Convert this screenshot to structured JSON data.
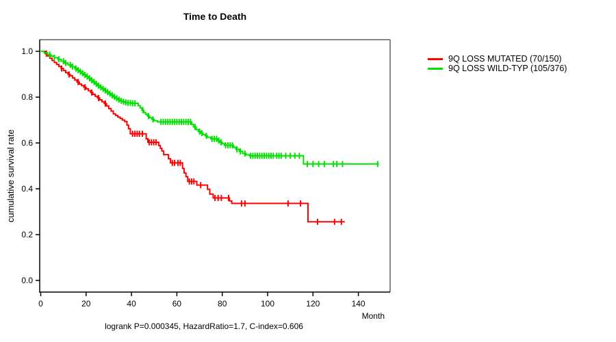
{
  "title": "Time to Death",
  "legend": {
    "items": [
      {
        "label": "9Q LOSS MUTATED (70/150)",
        "color": "#FF0000"
      },
      {
        "label": "9Q LOSS WILD-TYP (105/376)",
        "color": "#00E100"
      }
    ]
  },
  "axes": {
    "y_label": "cumulative survival rate",
    "x_label": "Month"
  },
  "footer": "logrank P=0.000345, HazardRatio=1.7, C-index=0.606",
  "colors": {
    "mutated": "#FF0000",
    "wildtype": "#00E100",
    "axis": "#000000",
    "box_shadow": "#878787"
  },
  "chart_data": {
    "type": "line",
    "subtype": "kaplan-meier-step-function",
    "title": "Time to Death",
    "xlabel": "Month",
    "ylabel": "cumulative survival rate",
    "xlim": [
      0,
      155
    ],
    "ylim": [
      0.0,
      1.0
    ],
    "x_ticks": [
      0,
      20,
      40,
      60,
      80,
      100,
      120,
      140
    ],
    "y_ticks": [
      1.0,
      0.8,
      0.6,
      0.4,
      0.2,
      0.0
    ],
    "grid": false,
    "legend_position": "right-outside",
    "annotation": "logrank P=0.000345, HazardRatio=1.7, C-index=0.606",
    "series": [
      {
        "name": "9Q LOSS MUTATED (70/150)",
        "color": "#FF0000",
        "steps": [
          [
            0,
            1.0
          ],
          [
            2,
            0.99
          ],
          [
            3,
            0.98
          ],
          [
            4,
            0.97
          ],
          [
            5,
            0.96
          ],
          [
            6,
            0.951
          ],
          [
            7,
            0.943
          ],
          [
            8,
            0.934
          ],
          [
            9,
            0.925
          ],
          [
            10,
            0.916
          ],
          [
            11,
            0.907
          ],
          [
            12,
            0.899
          ],
          [
            13,
            0.893
          ],
          [
            14,
            0.884
          ],
          [
            15,
            0.875
          ],
          [
            16,
            0.866
          ],
          [
            17,
            0.857
          ],
          [
            18,
            0.85
          ],
          [
            19,
            0.843
          ],
          [
            20,
            0.836
          ],
          [
            21,
            0.828
          ],
          [
            22,
            0.82
          ],
          [
            23,
            0.812
          ],
          [
            24,
            0.804
          ],
          [
            25,
            0.796
          ],
          [
            26,
            0.788
          ],
          [
            27,
            0.78
          ],
          [
            28,
            0.772
          ],
          [
            29,
            0.762
          ],
          [
            30,
            0.75
          ],
          [
            31,
            0.739
          ],
          [
            32,
            0.727
          ],
          [
            33,
            0.72
          ],
          [
            34,
            0.713
          ],
          [
            35,
            0.707
          ],
          [
            36,
            0.7
          ],
          [
            37,
            0.693
          ],
          [
            38,
            0.678
          ],
          [
            38.7,
            0.662
          ],
          [
            39.5,
            0.64
          ],
          [
            46.5,
            0.618
          ],
          [
            47.2,
            0.603
          ],
          [
            52,
            0.589
          ],
          [
            52.7,
            0.577
          ],
          [
            53.4,
            0.565
          ],
          [
            54.2,
            0.549
          ],
          [
            56.3,
            0.531
          ],
          [
            57.2,
            0.513
          ],
          [
            62.5,
            0.489
          ],
          [
            63.2,
            0.469
          ],
          [
            64,
            0.453
          ],
          [
            64.8,
            0.432
          ],
          [
            68.8,
            0.416
          ],
          [
            73.5,
            0.398
          ],
          [
            74.5,
            0.377
          ],
          [
            76,
            0.36
          ],
          [
            83.2,
            0.347
          ],
          [
            84.2,
            0.336
          ],
          [
            117.8,
            0.256
          ],
          [
            134,
            0.256
          ]
        ],
        "censor_months": [
          2.5,
          9.2,
          12.5,
          16.5,
          19.5,
          22.5,
          25.5,
          28.5,
          40.5,
          41.5,
          42.5,
          43.5,
          44.8,
          47.8,
          48.8,
          49.8,
          50.8,
          58,
          59,
          60.5,
          61.5,
          65.5,
          66.5,
          67.5,
          70.5,
          76.8,
          78.2,
          79.6,
          82.8,
          88.5,
          90,
          109,
          114.5,
          122,
          129.5,
          132.5
        ]
      },
      {
        "name": "9Q LOSS WILD-TYP (105/376)",
        "color": "#00E100",
        "steps": [
          [
            0,
            1.0
          ],
          [
            1.5,
            0.993
          ],
          [
            3,
            0.986
          ],
          [
            4.5,
            0.979
          ],
          [
            6,
            0.972
          ],
          [
            7.5,
            0.965
          ],
          [
            9,
            0.957
          ],
          [
            10.5,
            0.949
          ],
          [
            12,
            0.941
          ],
          [
            13.5,
            0.933
          ],
          [
            15,
            0.925
          ],
          [
            16,
            0.918
          ],
          [
            17,
            0.911
          ],
          [
            18,
            0.904
          ],
          [
            19,
            0.897
          ],
          [
            20,
            0.89
          ],
          [
            21,
            0.882
          ],
          [
            22,
            0.874
          ],
          [
            23,
            0.866
          ],
          [
            24,
            0.858
          ],
          [
            25,
            0.85
          ],
          [
            26,
            0.843
          ],
          [
            27,
            0.836
          ],
          [
            28,
            0.829
          ],
          [
            29,
            0.822
          ],
          [
            30,
            0.815
          ],
          [
            31,
            0.808
          ],
          [
            32,
            0.801
          ],
          [
            33,
            0.795
          ],
          [
            34,
            0.789
          ],
          [
            35,
            0.784
          ],
          [
            36,
            0.78
          ],
          [
            37,
            0.777
          ],
          [
            38,
            0.775
          ],
          [
            40,
            0.773
          ],
          [
            43,
            0.763
          ],
          [
            43.8,
            0.753
          ],
          [
            44.6,
            0.743
          ],
          [
            45.4,
            0.733
          ],
          [
            46.2,
            0.725
          ],
          [
            47,
            0.717
          ],
          [
            48,
            0.71
          ],
          [
            49,
            0.703
          ],
          [
            50,
            0.697
          ],
          [
            51.5,
            0.692
          ],
          [
            66.5,
            0.681
          ],
          [
            67.3,
            0.67
          ],
          [
            68.5,
            0.658
          ],
          [
            69.5,
            0.65
          ],
          [
            70.5,
            0.643
          ],
          [
            71.5,
            0.637
          ],
          [
            72.5,
            0.631
          ],
          [
            73.5,
            0.625
          ],
          [
            75,
            0.618
          ],
          [
            78,
            0.61
          ],
          [
            79,
            0.603
          ],
          [
            80,
            0.596
          ],
          [
            81,
            0.59
          ],
          [
            85,
            0.581
          ],
          [
            86,
            0.572
          ],
          [
            87.5,
            0.563
          ],
          [
            89,
            0.554
          ],
          [
            90.5,
            0.548
          ],
          [
            92,
            0.544
          ],
          [
            115.8,
            0.508
          ],
          [
            149,
            0.508
          ]
        ],
        "censor_months": [
          4,
          6,
          8,
          10,
          11,
          13,
          14,
          15.5,
          16.5,
          17.5,
          18.5,
          19.5,
          20.5,
          21.5,
          22.5,
          23.5,
          24.5,
          25.5,
          26.5,
          27.5,
          28.5,
          29.5,
          30.5,
          31.5,
          32.5,
          33.5,
          34.5,
          35.5,
          36.5,
          37.5,
          38.5,
          39.5,
          40.5,
          41.5,
          45,
          47.5,
          49.5,
          53,
          54,
          55,
          56,
          57,
          58,
          59,
          60,
          61,
          62,
          63,
          64,
          65,
          66,
          68,
          70,
          71,
          73,
          75.5,
          76.5,
          77.5,
          78.5,
          79.5,
          81.5,
          82.5,
          83.5,
          84.5,
          86.5,
          88,
          90,
          92.5,
          93.5,
          94.5,
          95.5,
          96.5,
          97.5,
          98.5,
          99.5,
          100.5,
          101.5,
          102.5,
          104,
          105,
          106,
          108,
          110,
          112,
          114,
          117.5,
          120,
          122.5,
          125,
          129,
          130.5,
          133,
          148.5
        ]
      }
    ]
  }
}
